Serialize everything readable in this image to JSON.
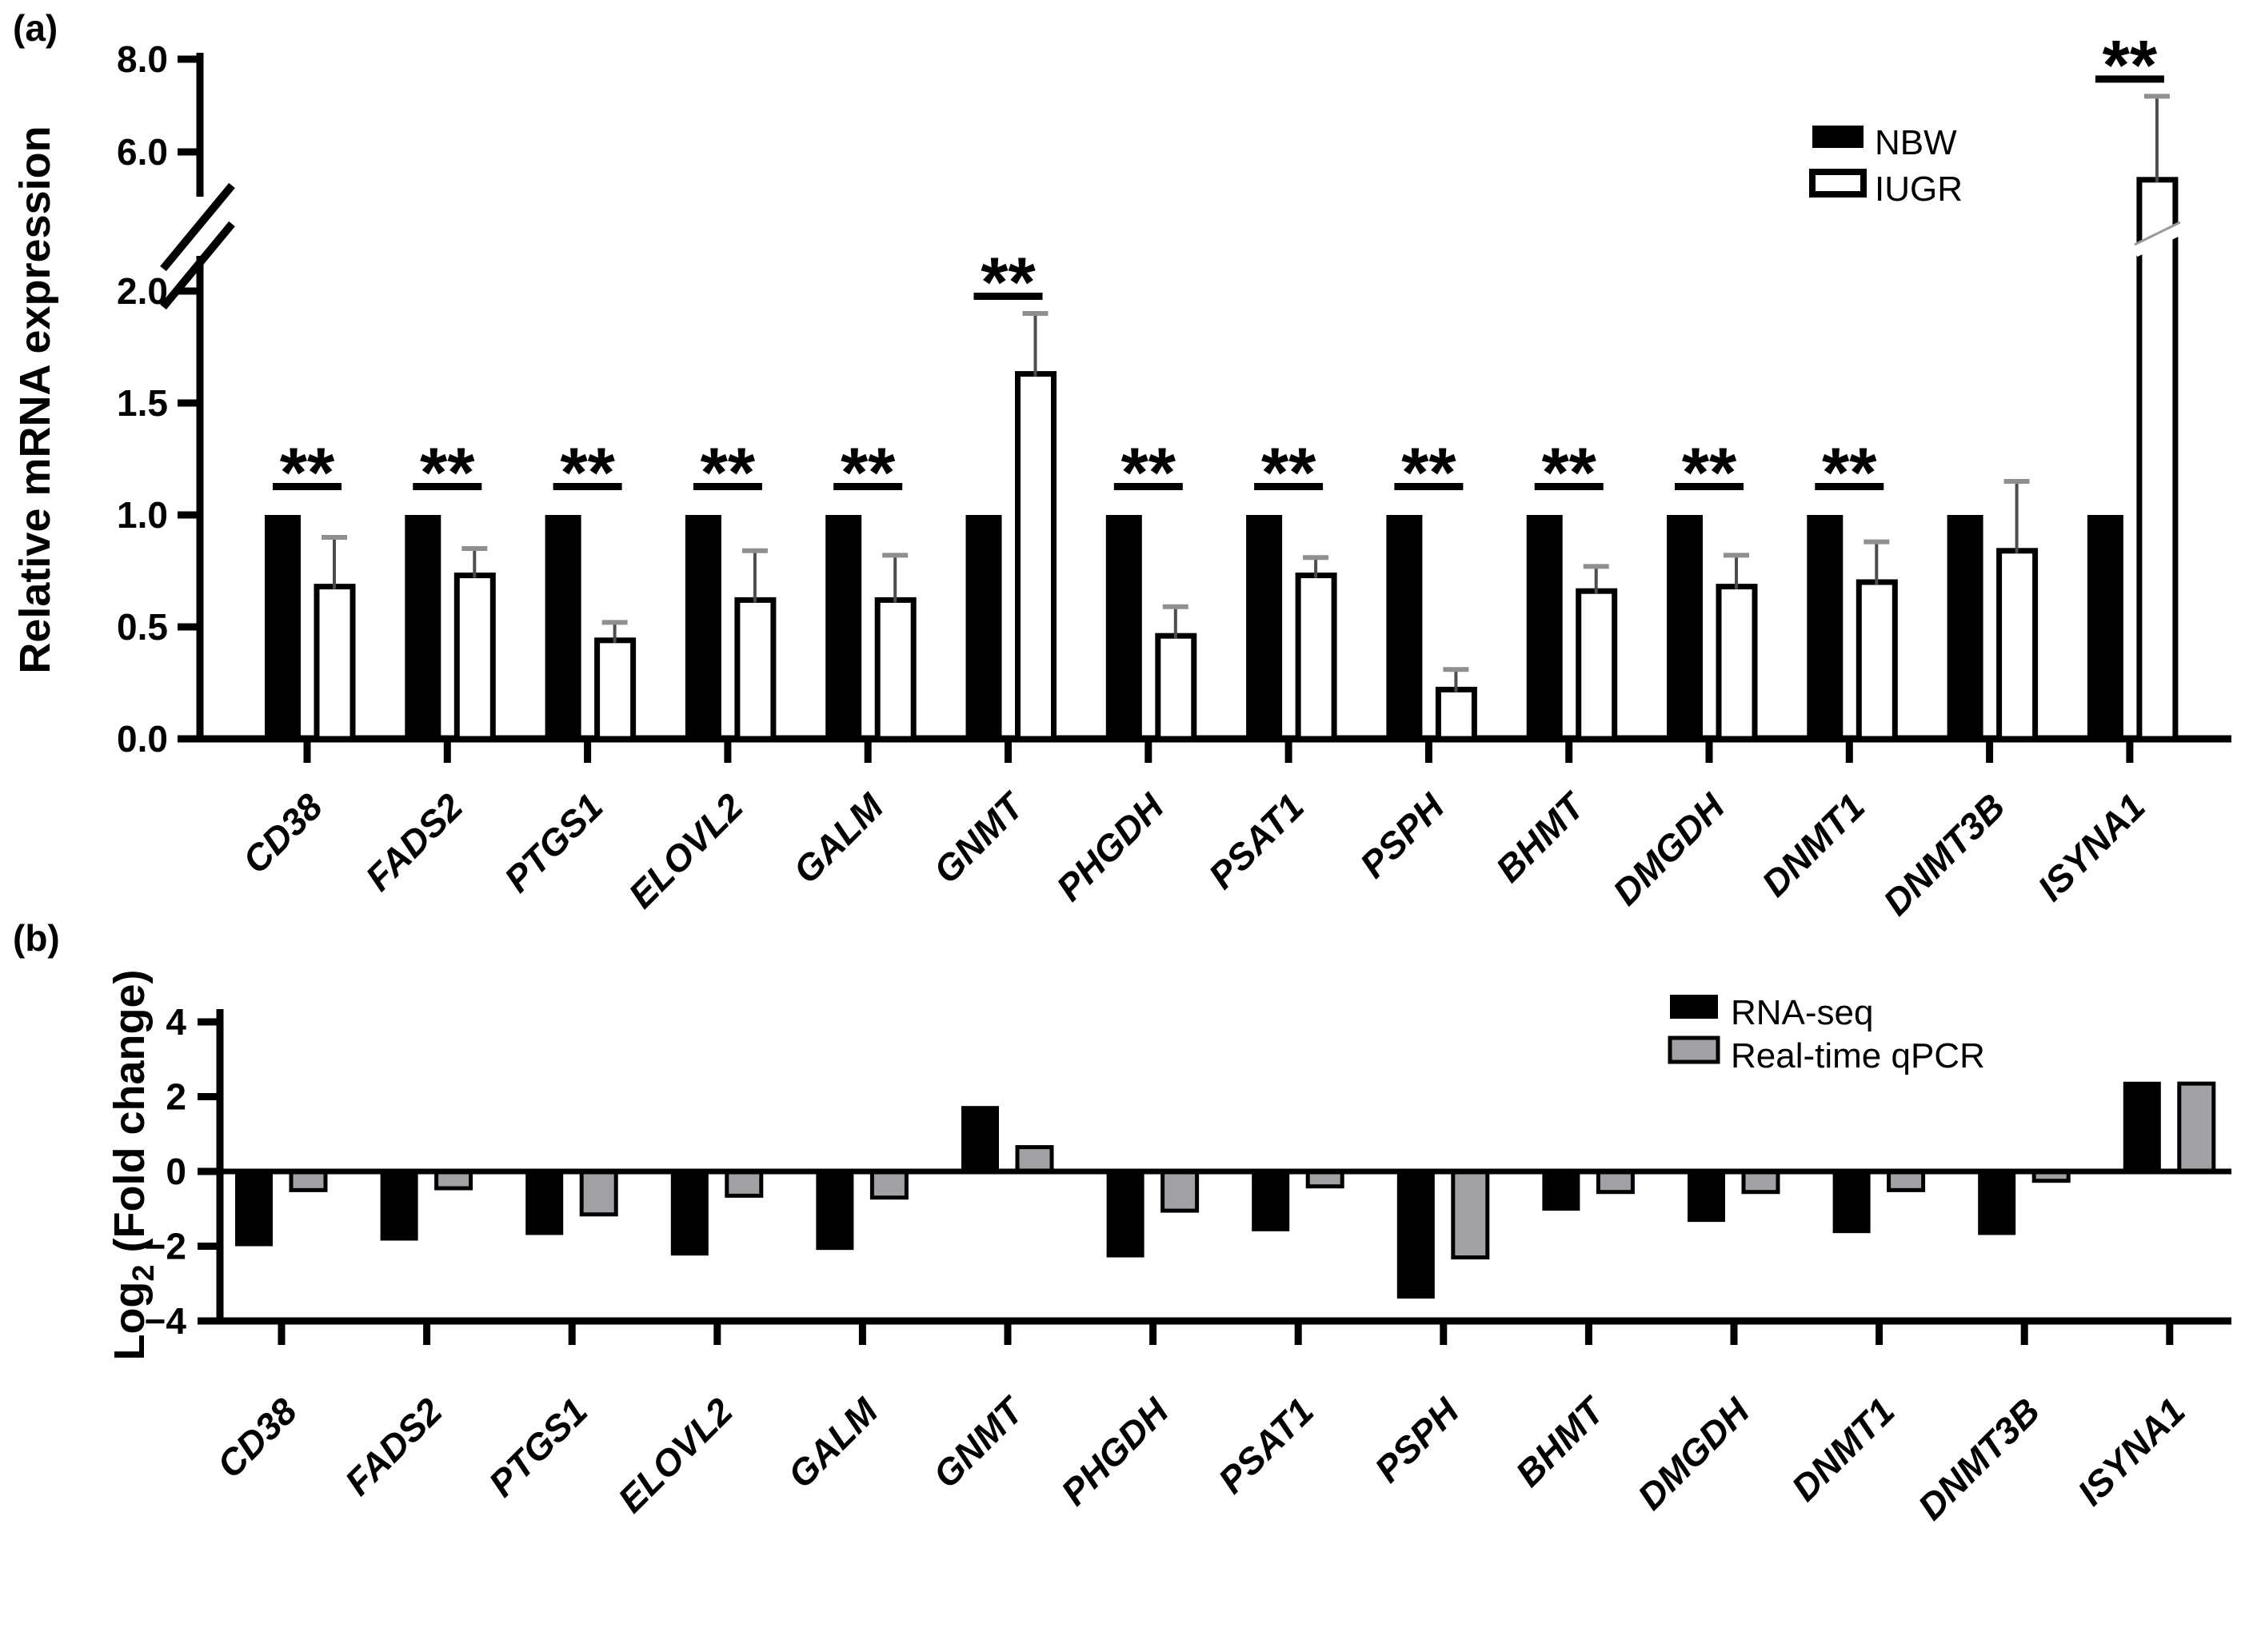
{
  "figure": {
    "panel_a_label": "(a)",
    "panel_b_label": "(b)"
  },
  "colors": {
    "black": "#000000",
    "white_bar_fill": "#ffffff",
    "gray_bar_fill": "#A1A1A5",
    "error_bar": "#4d4d4d",
    "error_cap": "#8f8f8f",
    "background": "#ffffff"
  },
  "chart_data": [
    {
      "type": "bar",
      "panel": "a",
      "panel_label": "(a)",
      "ylabel": "Relative mRNA expression",
      "categories": [
        "CD38",
        "FADS2",
        "PTGS1",
        "ELOVL2",
        "GALM",
        "GNMT",
        "PHGDH",
        "PSAT1",
        "PSPH",
        "BHMT",
        "DMGDH",
        "DNMT1",
        "DNMT3B",
        "ISYNA1"
      ],
      "series": [
        {
          "name": "NBW",
          "values": [
            1.0,
            1.0,
            1.0,
            1.0,
            1.0,
            1.0,
            1.0,
            1.0,
            1.0,
            1.0,
            1.0,
            1.0,
            1.0,
            1.0
          ]
        },
        {
          "name": "IUGR",
          "values": [
            0.68,
            0.73,
            0.44,
            0.62,
            0.62,
            1.63,
            0.46,
            0.73,
            0.22,
            0.66,
            0.68,
            0.7,
            0.84,
            5.2
          ],
          "sd": [
            0.22,
            0.12,
            0.08,
            0.22,
            0.2,
            0.27,
            0.13,
            0.08,
            0.09,
            0.11,
            0.14,
            0.18,
            0.31,
            2.0
          ]
        }
      ],
      "significance": [
        "**",
        "**",
        "**",
        "**",
        "**",
        "**",
        "**",
        "**",
        "**",
        "**",
        "**",
        "**",
        "",
        "**"
      ],
      "axis_break": {
        "lower_min": 0.0,
        "lower_max": 2.0,
        "upper_min": 6.0,
        "upper_max": 8.0
      },
      "yticks_lower": {
        "values": [
          0.0,
          0.5,
          1.0,
          1.5,
          2.0
        ],
        "labels": [
          "0.0",
          "0.5",
          "1.0",
          "1.5",
          "2.0"
        ]
      },
      "yticks_upper": {
        "values": [
          6.0,
          8.0
        ],
        "labels": [
          "6.0",
          "8.0"
        ]
      },
      "legend": [
        "NBW",
        "IUGR"
      ],
      "grid": false,
      "legend_position": "top-right"
    },
    {
      "type": "bar",
      "panel": "b",
      "panel_label": "(b)",
      "ylabel_parts": {
        "base": "Log",
        "sub": "2",
        "rest": " (Fold change)"
      },
      "categories": [
        "CD38",
        "FADS2",
        "PTGS1",
        "ELOVL2",
        "GALM",
        "GNMT",
        "PHGDH",
        "PSAT1",
        "PSPH",
        "BHMT",
        "DMGDH",
        "DNMT1",
        "DNMT3B",
        "ISYNA1"
      ],
      "series": [
        {
          "name": "RNA-seq",
          "values": [
            -2.0,
            -1.85,
            -1.7,
            -2.25,
            -2.1,
            1.75,
            -2.3,
            -1.6,
            -3.4,
            -1.05,
            -1.35,
            -1.65,
            -1.7,
            2.4
          ]
        },
        {
          "name": "Real-time qPCR",
          "values": [
            -0.5,
            -0.45,
            -1.15,
            -0.65,
            -0.7,
            0.65,
            -1.05,
            -0.4,
            -2.3,
            -0.55,
            -0.55,
            -0.5,
            -0.25,
            2.35
          ]
        }
      ],
      "ylim": [
        -4,
        4
      ],
      "yticks": {
        "values": [
          4,
          2,
          0,
          -2,
          -4
        ],
        "labels": [
          "4",
          "2",
          "0",
          "−2",
          "−4"
        ]
      },
      "legend": [
        "RNA-seq",
        "Real-time qPCR"
      ],
      "grid": false,
      "legend_position": "top-right"
    }
  ]
}
